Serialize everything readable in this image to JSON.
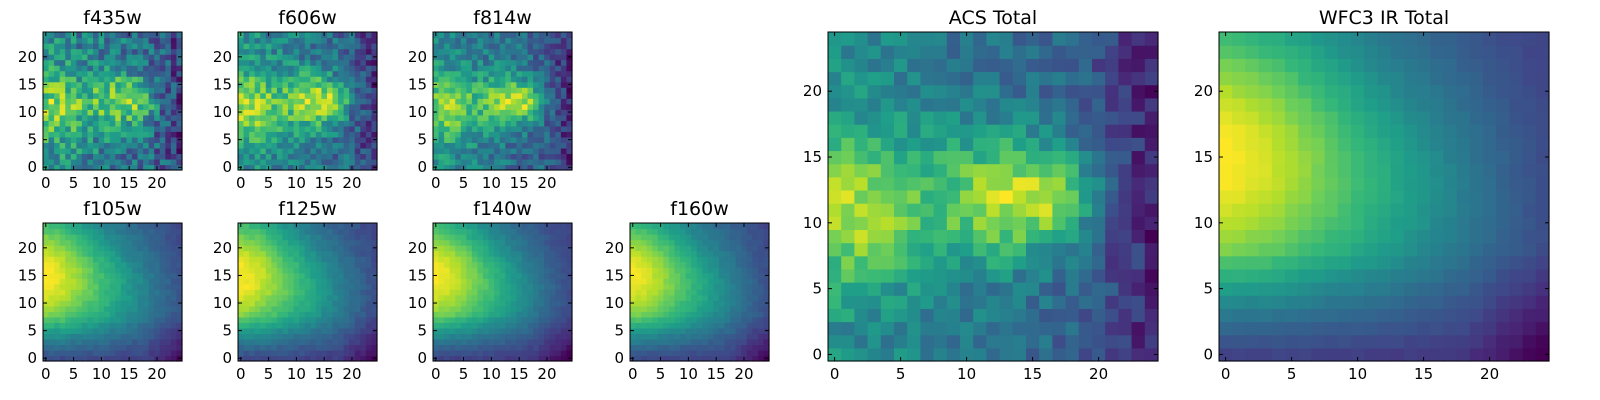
{
  "chart_data": [
    {
      "type": "heatmap",
      "title": "f435w",
      "xticks": [
        0,
        5,
        10,
        15,
        20
      ],
      "yticks": [
        0,
        5,
        10,
        15,
        20
      ],
      "xlim": [
        -0.5,
        24.5
      ],
      "ylim": [
        -0.5,
        24.5
      ],
      "noise": 0.32,
      "model": "opt"
    },
    {
      "type": "heatmap",
      "title": "f606w",
      "xticks": [
        0,
        5,
        10,
        15,
        20
      ],
      "yticks": [
        0,
        5,
        10,
        15,
        20
      ],
      "xlim": [
        -0.5,
        24.5
      ],
      "ylim": [
        -0.5,
        24.5
      ],
      "noise": 0.22,
      "model": "opt"
    },
    {
      "type": "heatmap",
      "title": "f814w",
      "xticks": [
        0,
        5,
        10,
        15,
        20
      ],
      "yticks": [
        0,
        5,
        10,
        15,
        20
      ],
      "xlim": [
        -0.5,
        24.5
      ],
      "ylim": [
        -0.5,
        24.5
      ],
      "noise": 0.2,
      "model": "opt"
    },
    {
      "type": "heatmap",
      "title": "f105w",
      "xticks": [
        0,
        5,
        10,
        15,
        20
      ],
      "yticks": [
        0,
        5,
        10,
        15,
        20
      ],
      "xlim": [
        -0.5,
        24.5
      ],
      "ylim": [
        -0.5,
        24.5
      ],
      "noise": 0.05,
      "model": "ir"
    },
    {
      "type": "heatmap",
      "title": "f125w",
      "xticks": [
        0,
        5,
        10,
        15,
        20
      ],
      "yticks": [
        0,
        5,
        10,
        15,
        20
      ],
      "xlim": [
        -0.5,
        24.5
      ],
      "ylim": [
        -0.5,
        24.5
      ],
      "noise": 0.05,
      "model": "ir"
    },
    {
      "type": "heatmap",
      "title": "f140w",
      "xticks": [
        0,
        5,
        10,
        15,
        20
      ],
      "yticks": [
        0,
        5,
        10,
        15,
        20
      ],
      "xlim": [
        -0.5,
        24.5
      ],
      "ylim": [
        -0.5,
        24.5
      ],
      "noise": 0.04,
      "model": "ir"
    },
    {
      "type": "heatmap",
      "title": "f160w",
      "xticks": [
        0,
        5,
        10,
        15,
        20
      ],
      "yticks": [
        0,
        5,
        10,
        15,
        20
      ],
      "xlim": [
        -0.5,
        24.5
      ],
      "ylim": [
        -0.5,
        24.5
      ],
      "noise": 0.04,
      "model": "ir"
    },
    {
      "type": "heatmap",
      "title": "ACS Total",
      "xticks": [
        0,
        5,
        10,
        15,
        20
      ],
      "yticks": [
        0,
        5,
        10,
        15,
        20
      ],
      "xlim": [
        -0.5,
        24.5
      ],
      "ylim": [
        -0.5,
        24.5
      ],
      "noise": 0.14,
      "model": "opt"
    },
    {
      "type": "heatmap",
      "title": "WFC3 IR Total",
      "xticks": [
        0,
        5,
        10,
        15,
        20
      ],
      "yticks": [
        0,
        5,
        10,
        15,
        20
      ],
      "xlim": [
        -0.5,
        24.5
      ],
      "ylim": [
        -0.5,
        24.5
      ],
      "noise": 0.02,
      "model": "ir"
    }
  ]
}
